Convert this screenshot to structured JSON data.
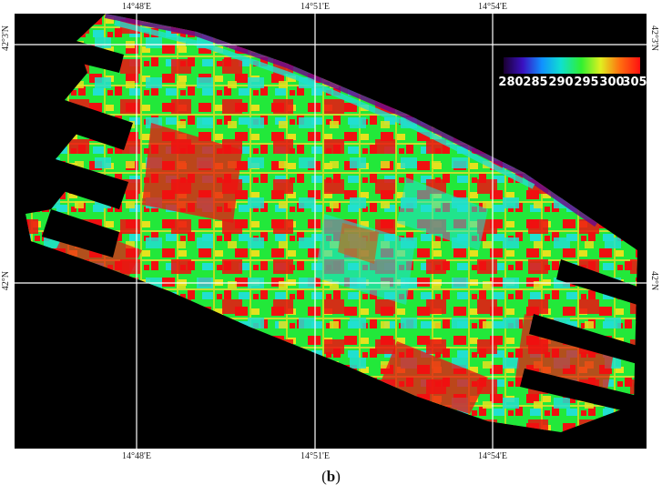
{
  "map": {
    "lon_ticks": [
      "14°48'E",
      "14°51'E",
      "14°54'E"
    ],
    "lat_ticks": [
      "42°3'N",
      "42°N"
    ],
    "colors": {
      "background": "#000000",
      "grid": "#ffffff",
      "field_green": "#22e83a",
      "field_red": "#f01010",
      "field_cyan": "#21e0d0",
      "field_yellow": "#e4e21e",
      "field_blue": "#2050e0",
      "coast_purple": "#6a0a8a"
    }
  },
  "legend": {
    "labels": [
      "280",
      "285",
      "290",
      "295",
      "300",
      "305"
    ],
    "colors": [
      "#1a0030",
      "#3a10c0",
      "#1090ff",
      "#10e0d0",
      "#30f030",
      "#e0f020",
      "#ff7010",
      "#ff1010"
    ]
  },
  "caption": {
    "open": "(",
    "letter": "b",
    "close": ")"
  }
}
